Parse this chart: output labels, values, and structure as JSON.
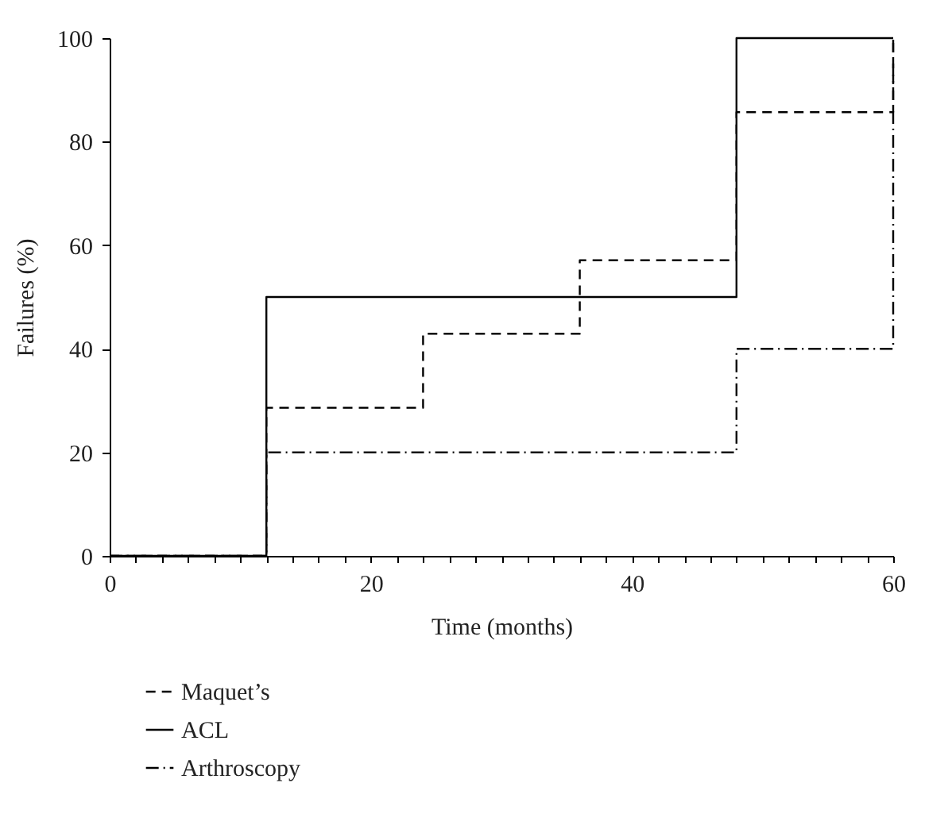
{
  "chart_data": {
    "type": "step",
    "xlabel": "Time (months)",
    "ylabel": "Failures (%)",
    "xlim": [
      0,
      60
    ],
    "ylim": [
      0,
      100
    ],
    "xticks": [
      0,
      {
        "value": 2,
        "label": null
      },
      {
        "value": 4,
        "label": null
      },
      {
        "value": 6,
        "label": null
      },
      {
        "value": 8,
        "label": null
      },
      {
        "value": 10,
        "label": null
      },
      {
        "value": 12,
        "label": null
      },
      {
        "value": 14,
        "label": null
      },
      {
        "value": 16,
        "label": null
      },
      {
        "value": 18,
        "label": null
      },
      20,
      {
        "value": 22,
        "label": null
      },
      {
        "value": 24,
        "label": null
      },
      {
        "value": 26,
        "label": null
      },
      {
        "value": 28,
        "label": null
      },
      {
        "value": 30,
        "label": null
      },
      {
        "value": 32,
        "label": null
      },
      {
        "value": 34,
        "label": null
      },
      {
        "value": 36,
        "label": null
      },
      {
        "value": 38,
        "label": null
      },
      40,
      {
        "value": 42,
        "label": null
      },
      {
        "value": 44,
        "label": null
      },
      {
        "value": 46,
        "label": null
      },
      {
        "value": 48,
        "label": null
      },
      {
        "value": 50,
        "label": null
      },
      {
        "value": 52,
        "label": null
      },
      {
        "value": 54,
        "label": null
      },
      {
        "value": 56,
        "label": null
      },
      {
        "value": 58,
        "label": null
      },
      60
    ],
    "yticks": [
      0,
      20,
      40,
      60,
      80,
      100
    ],
    "legend": "bottom left",
    "grid": false,
    "series": [
      {
        "name": "Maquet’s",
        "color": "#000000",
        "line_style": "dashed",
        "x": [
          0,
          12,
          24,
          36,
          48,
          60
        ],
        "values": [
          0,
          28.6,
          42.9,
          57.1,
          85.7,
          100
        ]
      },
      {
        "name": "ACL",
        "color": "#000000",
        "line_style": "solid",
        "x": [
          0,
          12,
          48,
          60
        ],
        "values": [
          0,
          50,
          100,
          100
        ]
      },
      {
        "name": "Arthroscopy",
        "color": "#000000",
        "line_style": "dashdot",
        "x": [
          0,
          12,
          48,
          60
        ],
        "values": [
          0,
          20,
          40,
          100
        ]
      }
    ]
  }
}
